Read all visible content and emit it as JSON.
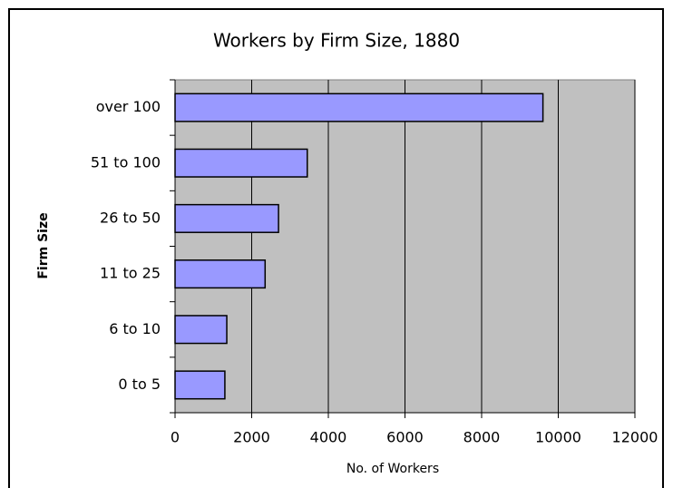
{
  "chart_data": {
    "type": "bar",
    "orientation": "horizontal",
    "title": "Workers by Firm Size, 1880",
    "x_label": "No. of Workers",
    "y_label": "Firm Size",
    "categories": [
      "0 to 5",
      "6 to 10",
      "11 to 25",
      "26 to 50",
      "51 to 100",
      "over 100"
    ],
    "values": [
      1300,
      1350,
      2350,
      2700,
      3450,
      9600
    ],
    "color": "#9999ff",
    "plot_background": "#c0c0c0",
    "xlim": [
      0,
      12000
    ],
    "xticks": [
      0,
      2000,
      4000,
      6000,
      8000,
      10000,
      12000
    ],
    "grid": true
  }
}
